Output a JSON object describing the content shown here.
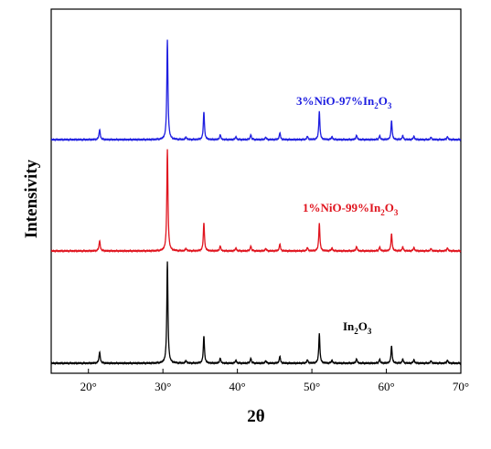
{
  "chart_data": {
    "type": "line",
    "xlabel": "2θ",
    "ylabel": "Intensivity",
    "xlim": [
      15,
      70
    ],
    "x_ticks": [
      {
        "value": 20,
        "label": "20°"
      },
      {
        "value": 30,
        "label": "30°"
      },
      {
        "value": 40,
        "label": "40°"
      },
      {
        "value": 50,
        "label": "50°"
      },
      {
        "value": 60,
        "label": "60°"
      },
      {
        "value": 70,
        "label": "70°"
      }
    ],
    "grid": false,
    "legend": "inline labels",
    "series": [
      {
        "name": "In2O3",
        "label_parts": [
          {
            "t": "In"
          },
          {
            "t": "2",
            "sub": true
          },
          {
            "t": "O"
          },
          {
            "t": "3",
            "sub": true
          }
        ],
        "color": "#000000",
        "peaks": [
          [
            21.5,
            0.11
          ],
          [
            30.6,
            1.0
          ],
          [
            33.1,
            0.025
          ],
          [
            35.5,
            0.27
          ],
          [
            37.7,
            0.05
          ],
          [
            39.8,
            0.03
          ],
          [
            41.8,
            0.05
          ],
          [
            43.8,
            0.025
          ],
          [
            45.7,
            0.07
          ],
          [
            49.4,
            0.035
          ],
          [
            51.0,
            0.29
          ],
          [
            52.7,
            0.03
          ],
          [
            56.0,
            0.045
          ],
          [
            59.1,
            0.04
          ],
          [
            60.7,
            0.17
          ],
          [
            62.2,
            0.04
          ],
          [
            63.7,
            0.035
          ],
          [
            66.0,
            0.025
          ],
          [
            68.2,
            0.03
          ]
        ]
      },
      {
        "name": "1%NiO-99%In2O3",
        "label_parts": [
          {
            "t": "1%NiO-99%In"
          },
          {
            "t": "2",
            "sub": true
          },
          {
            "t": "O"
          },
          {
            "t": "3",
            "sub": true
          }
        ],
        "color": "#e0141e",
        "peaks": [
          [
            21.5,
            0.1
          ],
          [
            30.6,
            1.0
          ],
          [
            33.1,
            0.025
          ],
          [
            35.5,
            0.28
          ],
          [
            37.7,
            0.05
          ],
          [
            39.8,
            0.03
          ],
          [
            41.8,
            0.05
          ],
          [
            43.8,
            0.025
          ],
          [
            45.7,
            0.07
          ],
          [
            49.4,
            0.035
          ],
          [
            51.0,
            0.27
          ],
          [
            52.7,
            0.03
          ],
          [
            56.0,
            0.045
          ],
          [
            59.1,
            0.04
          ],
          [
            60.7,
            0.17
          ],
          [
            62.2,
            0.04
          ],
          [
            63.7,
            0.035
          ],
          [
            66.0,
            0.025
          ],
          [
            68.2,
            0.03
          ]
        ]
      },
      {
        "name": "3%NiO-97%In2O3",
        "label_parts": [
          {
            "t": "3%NiO-97%In"
          },
          {
            "t": "2",
            "sub": true
          },
          {
            "t": "O"
          },
          {
            "t": "3",
            "sub": true
          }
        ],
        "color": "#1e1ee0",
        "peaks": [
          [
            21.5,
            0.1
          ],
          [
            30.6,
            1.0
          ],
          [
            33.1,
            0.025
          ],
          [
            35.5,
            0.28
          ],
          [
            37.7,
            0.05
          ],
          [
            39.8,
            0.03
          ],
          [
            41.8,
            0.05
          ],
          [
            43.8,
            0.025
          ],
          [
            45.7,
            0.07
          ],
          [
            49.4,
            0.035
          ],
          [
            51.0,
            0.28
          ],
          [
            52.7,
            0.03
          ],
          [
            56.0,
            0.045
          ],
          [
            59.1,
            0.04
          ],
          [
            60.7,
            0.19
          ],
          [
            62.2,
            0.04
          ],
          [
            63.7,
            0.035
          ],
          [
            66.0,
            0.025
          ],
          [
            68.2,
            0.03
          ]
        ]
      }
    ]
  }
}
